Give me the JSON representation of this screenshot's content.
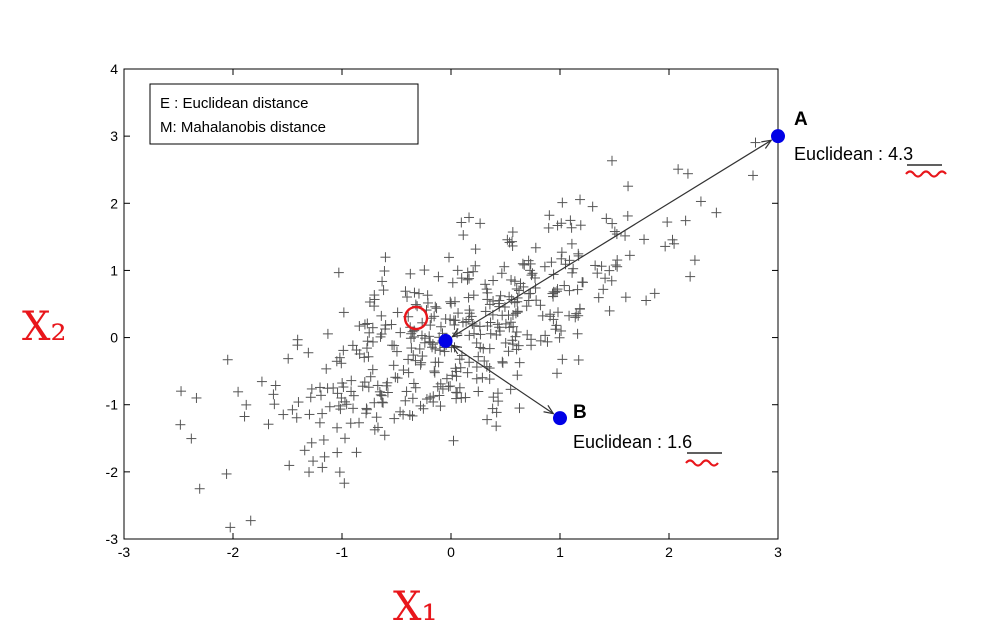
{
  "chart_data": {
    "type": "scatter",
    "xlim": [
      -3,
      3
    ],
    "ylim": [
      -3,
      4
    ],
    "xticks": [
      "-3",
      "-2",
      "-1",
      "0",
      "1",
      "2",
      "3"
    ],
    "yticks": [
      "-3",
      "-2",
      "-1",
      "0",
      "1",
      "2",
      "3",
      "4"
    ],
    "legend": {
      "placement": "top-left",
      "entries": [
        "E : Euclidean distance",
        "M: Mahalanobis distance"
      ]
    },
    "marker": "+",
    "marker_color": "#555555",
    "point_count": 460,
    "correlation": 0.75,
    "highlighted_points": [
      {
        "name": "Center",
        "x": -0.05,
        "y": -0.05,
        "label": ""
      },
      {
        "name": "A",
        "x": 3.0,
        "y": 3.0,
        "label": "A",
        "euclidean_label": "Euclidean : ",
        "euclidean_value": "4.3"
      },
      {
        "name": "B",
        "x": 1.0,
        "y": -1.2,
        "label": "B",
        "euclidean_label": "Euclidean : ",
        "euclidean_value": "1.6"
      }
    ],
    "highlight_color": "#0000e6",
    "handwriting": {
      "x_axis": "X₁",
      "y_axis": "X₂",
      "color": "#e8161b"
    }
  }
}
